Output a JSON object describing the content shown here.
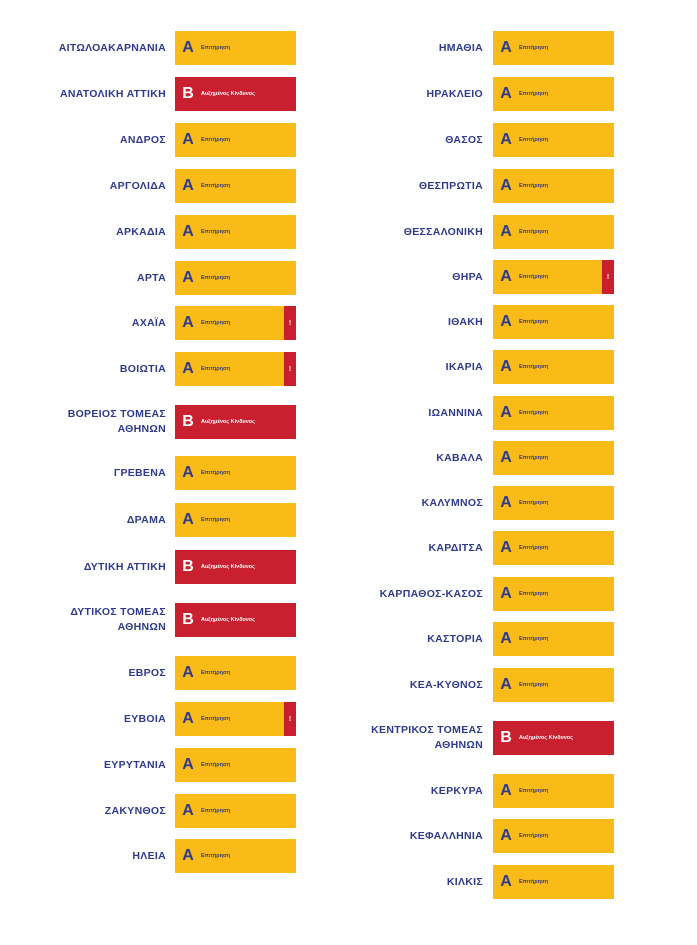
{
  "left_column": [
    {
      "name": "ΑΙΤΩΛΟΑΚΑΡΝΑΝΙΑ",
      "level": "A",
      "label": "Επιτήρηση",
      "flag": false
    },
    {
      "name": "ΑΝΑΤΟΛΙΚΗ ΑΤΤΙΚΗ",
      "level": "B",
      "label": "Αυξημένος Κίνδυνος",
      "flag": false
    },
    {
      "name": "ΑΝΔΡΟΣ",
      "level": "A",
      "label": "Επιτήρηση",
      "flag": false
    },
    {
      "name": "ΑΡΓΟΛΙΔΑ",
      "level": "A",
      "label": "Επιτήρηση",
      "flag": false
    },
    {
      "name": "ΑΡΚΑΔΙΑ",
      "level": "A",
      "label": "Επιτήρηση",
      "flag": false
    },
    {
      "name": "ΑΡΤΑ",
      "level": "A",
      "label": "Επιτήρηση",
      "flag": false
    },
    {
      "name": "ΑΧΑΪΑ",
      "level": "A",
      "label": "Επιτήρηση",
      "flag": true
    },
    {
      "name": "ΒΟΙΩΤΙΑ",
      "level": "A",
      "label": "Επιτήρηση",
      "flag": true
    },
    {
      "name": "ΒΟΡΕΙΟΣ ΤΟΜΕΑΣ\nΑΘΗΝΩΝ",
      "level": "B",
      "label": "Αυξημένος Κίνδυνος",
      "flag": false
    },
    {
      "name": "ΓΡΕΒΕΝΑ",
      "level": "A",
      "label": "Επιτήρηση",
      "flag": false
    },
    {
      "name": "ΔΡΑΜΑ",
      "level": "A",
      "label": "Επιτήρηση",
      "flag": false
    },
    {
      "name": "ΔΥΤΙΚΗ ΑΤΤΙΚΗ",
      "level": "B",
      "label": "Αυξημένος Κίνδυνος",
      "flag": false
    },
    {
      "name": "ΔΥΤΙΚΟΣ ΤΟΜΕΑΣ\nΑΘΗΝΩΝ",
      "level": "B",
      "label": "Αυξημένος Κίνδυνος",
      "flag": false
    },
    {
      "name": "ΕΒΡΟΣ",
      "level": "A",
      "label": "Επιτήρηση",
      "flag": false
    },
    {
      "name": "ΕΥΒΟΙΑ",
      "level": "A",
      "label": "Επιτήρηση",
      "flag": true
    },
    {
      "name": "ΕΥΡΥΤΑΝΙΑ",
      "level": "A",
      "label": "Επιτήρηση",
      "flag": false
    },
    {
      "name": "ΖΑΚΥΝΘΟΣ",
      "level": "A",
      "label": "Επιτήρηση",
      "flag": false
    },
    {
      "name": "ΗΛΕΙΑ",
      "level": "A",
      "label": "Επιτήρηση",
      "flag": false
    }
  ],
  "right_column": [
    {
      "name": "ΗΜΑΘΙΑ",
      "level": "A",
      "label": "Επιτήρηση",
      "flag": false
    },
    {
      "name": "ΗΡΑΚΛΕΙΟ",
      "level": "A",
      "label": "Επιτήρηση",
      "flag": false
    },
    {
      "name": "ΘΑΣΟΣ",
      "level": "A",
      "label": "Επιτήρηση",
      "flag": false
    },
    {
      "name": "ΘΕΣΠΡΩΤΙΑ",
      "level": "A",
      "label": "Επιτήρηση",
      "flag": false
    },
    {
      "name": "ΘΕΣΣΑΛΟΝΙΚΗ",
      "level": "A",
      "label": "Επιτήρηση",
      "flag": false
    },
    {
      "name": "ΘΗΡΑ",
      "level": "A",
      "label": "Επιτήρηση",
      "flag": true
    },
    {
      "name": "ΙΘΑΚΗ",
      "level": "A",
      "label": "Επιτήρηση",
      "flag": false
    },
    {
      "name": "ΙΚΑΡΙΑ",
      "level": "A",
      "label": "Επιτήρηση",
      "flag": false
    },
    {
      "name": "ΙΩΑΝΝΙΝΑ",
      "level": "A",
      "label": "Επιτήρηση",
      "flag": false
    },
    {
      "name": "ΚΑΒΑΛΑ",
      "level": "A",
      "label": "Επιτήρηση",
      "flag": false
    },
    {
      "name": "ΚΑΛΥΜΝΟΣ",
      "level": "A",
      "label": "Επιτήρηση",
      "flag": false
    },
    {
      "name": "ΚΑΡΔΙΤΣΑ",
      "level": "A",
      "label": "Επιτήρηση",
      "flag": false
    },
    {
      "name": "ΚΑΡΠΑΘΟΣ-ΚΑΣΟΣ",
      "level": "A",
      "label": "Επιτήρηση",
      "flag": false
    },
    {
      "name": "ΚΑΣΤΟΡΙΑ",
      "level": "A",
      "label": "Επιτήρηση",
      "flag": false
    },
    {
      "name": "ΚΕΑ-ΚΥΘΝΟΣ",
      "level": "A",
      "label": "Επιτήρηση",
      "flag": false
    },
    {
      "name": "ΚΕΝΤΡΙΚΟΣ ΤΟΜΕΑΣ\nΑΘΗΝΩΝ",
      "level": "B",
      "label": "Αυξημένος Κίνδυνος",
      "flag": false
    },
    {
      "name": "ΚΕΡΚΥΡΑ",
      "level": "A",
      "label": "Επιτήρηση",
      "flag": false
    },
    {
      "name": "ΚΕΦΑΛΛΗΝΙΑ",
      "level": "A",
      "label": "Επιτήρηση",
      "flag": false
    },
    {
      "name": "ΚΙΛΚΙΣ",
      "level": "A",
      "label": "Επιτήρηση",
      "flag": false
    }
  ],
  "level_letters": {
    "A": "A",
    "B": "B"
  },
  "flag_mark": "!",
  "colors": {
    "level_A": "#f9bb18",
    "level_B": "#c8202f",
    "text": "#2e3a8c",
    "flag": "#c8202f"
  }
}
